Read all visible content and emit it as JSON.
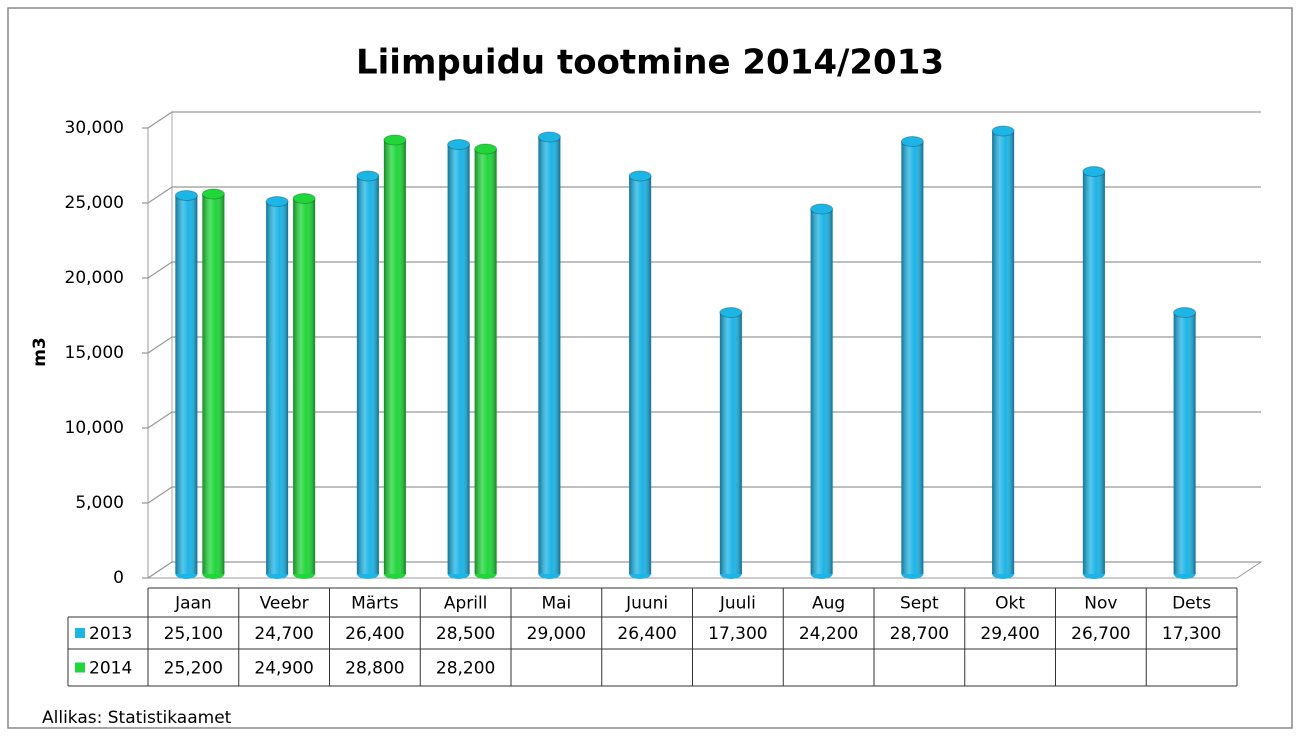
{
  "chart_data": {
    "type": "bar3d",
    "title": "Liimpuidu tootmine 2014/2013",
    "y_label": "m3",
    "source": "Allikas: Statistikaamet",
    "categories": [
      "Jaan",
      "Veebr",
      "Märts",
      "Aprill",
      "Mai",
      "Juuni",
      "Juuli",
      "Aug",
      "Sept",
      "Okt",
      "Nov",
      "Dets"
    ],
    "series": [
      {
        "name": "2013",
        "color": "#1db4e6",
        "values": [
          25100,
          24700,
          26400,
          28500,
          29000,
          26400,
          17300,
          24200,
          28700,
          29400,
          26700,
          17300
        ],
        "value_labels": [
          "25,100",
          "24,700",
          "26,400",
          "28,500",
          "29,000",
          "26,400",
          "17,300",
          "24,200",
          "28,700",
          "29,400",
          "26,700",
          "17,300"
        ]
      },
      {
        "name": "2014",
        "color": "#20d63a",
        "values": [
          25200,
          24900,
          28800,
          28200,
          null,
          null,
          null,
          null,
          null,
          null,
          null,
          null
        ],
        "value_labels": [
          "25,200",
          "24,900",
          "28,800",
          "28,200",
          null,
          null,
          null,
          null,
          null,
          null,
          null,
          null
        ]
      }
    ],
    "ylim": [
      0,
      30000
    ],
    "yticks": [
      0,
      {
        "value": 5000,
        "label": "5,000"
      },
      {
        "value": 10000,
        "label": "10,000"
      },
      {
        "value": 15000,
        "label": "15,000"
      },
      {
        "value": 20000,
        "label": "20,000"
      },
      {
        "value": 25000,
        "label": "25,000"
      },
      {
        "value": 30000,
        "label": "30,000"
      }
    ],
    "grid": true
  }
}
